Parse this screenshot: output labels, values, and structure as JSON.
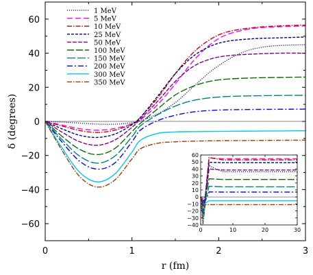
{
  "chart_data": {
    "type": "line",
    "xlabel": "r (fm)",
    "ylabel": "δ (degrees)",
    "xlim": [
      0,
      3
    ],
    "ylim": [
      -70,
      70
    ],
    "xticks": [
      "0",
      "1",
      "2",
      "3"
    ],
    "yticks": [
      "−60",
      "−40",
      "−20",
      "0",
      "20",
      "40",
      "60"
    ],
    "legend_position": "top-left",
    "zero_line": true,
    "series": [
      {
        "name": "1 MeV",
        "color": "#00008b",
        "dash": "1.2,1.8",
        "width": 1.2,
        "x": [
          0,
          0.3,
          0.6,
          0.9,
          1.1,
          1.3,
          1.5,
          1.7,
          1.9,
          2.1,
          2.3,
          2.5,
          2.7,
          3.0
        ],
        "y": [
          0,
          -0.7,
          -1.6,
          -1.4,
          0.5,
          4.5,
          11,
          20,
          29,
          36,
          41,
          43.5,
          44.5,
          45
        ]
      },
      {
        "name": "5 MeV",
        "color": "#ff00ff",
        "dash": "8,4",
        "width": 1.4,
        "x": [
          0,
          0.2,
          0.4,
          0.6,
          0.8,
          1.0,
          1.1,
          1.3,
          1.5,
          1.7,
          1.9,
          2.1,
          2.4,
          2.7,
          3.0
        ],
        "y": [
          0,
          -2.2,
          -4.3,
          -5.2,
          -4.2,
          -1.5,
          1,
          10,
          22,
          35,
          45,
          51,
          54.5,
          55.5,
          56
        ]
      },
      {
        "name": "10 MeV",
        "color": "#cc0000",
        "dash": "7,2,1.5,2",
        "width": 1.4,
        "x": [
          0,
          0.2,
          0.4,
          0.6,
          0.8,
          1.0,
          1.1,
          1.3,
          1.5,
          1.7,
          1.9,
          2.1,
          2.4,
          2.7,
          3.0
        ],
        "y": [
          0,
          -2.8,
          -5.4,
          -6.5,
          -5.2,
          -1.5,
          2.5,
          14,
          28,
          40,
          48,
          52.5,
          55,
          56,
          56.5
        ]
      },
      {
        "name": "25 MeV",
        "color": "#00008b",
        "dash": "4,2",
        "width": 1.4,
        "x": [
          0,
          0.2,
          0.4,
          0.6,
          0.8,
          1.0,
          1.1,
          1.3,
          1.5,
          1.7,
          1.9,
          2.1,
          2.4,
          2.7,
          3.0
        ],
        "y": [
          0,
          -4.5,
          -8.2,
          -9.4,
          -7.5,
          -2,
          2.5,
          15,
          28,
          38,
          44,
          47,
          48.5,
          49,
          49.5
        ]
      },
      {
        "name": "50 MeV",
        "color": "#800080",
        "dash": "6,2",
        "width": 1.4,
        "x": [
          0,
          0.2,
          0.4,
          0.6,
          0.8,
          1.0,
          1.1,
          1.3,
          1.5,
          1.7,
          1.9,
          2.1,
          2.4,
          2.7,
          3.0
        ],
        "y": [
          0,
          -6.5,
          -12,
          -14,
          -11,
          -3.5,
          1.5,
          12,
          23.5,
          32,
          36.5,
          38.5,
          39.5,
          40,
          40
        ]
      },
      {
        "name": "100 MeV",
        "color": "#007000",
        "dash": "10,3",
        "width": 1.4,
        "x": [
          0,
          0.2,
          0.4,
          0.6,
          0.8,
          1.0,
          1.1,
          1.3,
          1.5,
          1.7,
          1.9,
          2.1,
          2.4,
          2.7,
          3.0
        ],
        "y": [
          0,
          -9,
          -16.5,
          -19.5,
          -16,
          -6,
          -1,
          7.5,
          15.5,
          20.5,
          23.5,
          24.8,
          25.5,
          25.8,
          26
        ]
      },
      {
        "name": "150 MeV",
        "color": "#008080",
        "dash": "12,3",
        "width": 1.4,
        "x": [
          0,
          0.2,
          0.4,
          0.6,
          0.8,
          1.0,
          1.1,
          1.3,
          1.5,
          1.7,
          1.9,
          2.1,
          2.4,
          2.7,
          3.0
        ],
        "y": [
          0,
          -11,
          -20.5,
          -24.5,
          -20.5,
          -9,
          -2.5,
          4,
          9,
          12.2,
          13.8,
          14.6,
          15,
          15.2,
          15.3
        ]
      },
      {
        "name": "200 MeV",
        "color": "#0000ff",
        "dash": "8,3,2,3",
        "width": 1.4,
        "x": [
          0,
          0.2,
          0.4,
          0.6,
          0.8,
          1.0,
          1.1,
          1.3,
          1.5,
          1.7,
          1.9,
          2.1,
          2.4,
          2.7,
          3.0
        ],
        "y": [
          0,
          -12.5,
          -23.5,
          -28,
          -24.5,
          -12,
          -5,
          0.5,
          3.6,
          5.5,
          6.4,
          6.8,
          7,
          7.1,
          7.2
        ]
      },
      {
        "name": "300 MeV",
        "color": "#00c8e6",
        "dash": "",
        "width": 1.4,
        "x": [
          0,
          0.2,
          0.4,
          0.6,
          0.8,
          1.0,
          1.1,
          1.3,
          1.5,
          1.7,
          1.9,
          2.1,
          2.4,
          2.7,
          3.0
        ],
        "y": [
          0,
          -16,
          -30,
          -35.5,
          -31,
          -18,
          -11,
          -7,
          -6.2,
          -6,
          -5.9,
          -5.8,
          -5.7,
          -5.6,
          -5.5
        ]
      },
      {
        "name": "350 MeV",
        "color": "#9c3a00",
        "dash": "7,2,1.5,2",
        "width": 1.4,
        "x": [
          0,
          0.2,
          0.4,
          0.6,
          0.8,
          1.0,
          1.1,
          1.3,
          1.5,
          1.7,
          1.9,
          2.1,
          2.4,
          2.7,
          3.0
        ],
        "y": [
          0,
          -17.5,
          -32.5,
          -38.5,
          -34.5,
          -22,
          -16,
          -12.8,
          -12,
          -11.6,
          -11.4,
          -11.3,
          -11.2,
          -11.1,
          -11
        ]
      }
    ],
    "inset": {
      "xlim": [
        0,
        30
      ],
      "ylim": [
        -40,
        60
      ],
      "xticks": [
        "0",
        "10",
        "20",
        "30"
      ],
      "yticks": [
        "−40",
        "−30",
        "−20",
        "−10",
        "0",
        "10",
        "20",
        "30",
        "40",
        "50",
        "60"
      ],
      "zero_line": true,
      "plateaus": [
        {
          "series": "1 MeV",
          "peak": 45,
          "value": 36
        },
        {
          "series": "5 MeV",
          "peak": 56,
          "value": 54.5
        },
        {
          "series": "10 MeV",
          "peak": 56.5,
          "value": 53
        },
        {
          "series": "25 MeV",
          "peak": 49.5,
          "value": 49
        },
        {
          "series": "50 MeV",
          "peak": 40,
          "value": 38.5
        },
        {
          "series": "100 MeV",
          "peak": 26,
          "value": 25
        },
        {
          "series": "150 MeV",
          "peak": 15.3,
          "value": 14.5
        },
        {
          "series": "200 MeV",
          "peak": 7.2,
          "value": 7
        },
        {
          "series": "300 MeV",
          "peak": -5.5,
          "value": -5.5
        },
        {
          "series": "350 MeV",
          "peak": -11,
          "value": -11
        }
      ]
    }
  }
}
